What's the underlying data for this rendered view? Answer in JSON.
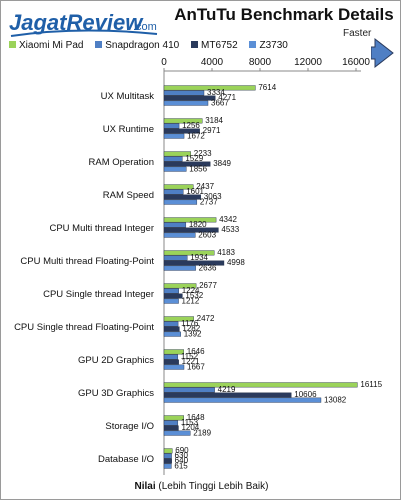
{
  "header": {
    "logo_text_1": "Jagat",
    "logo_text_2": "Review",
    "logo_domain": ".com",
    "title": "AnTuTu Benchmark Details",
    "faster_label": "Faster"
  },
  "colors": {
    "xiaomi": "#9bd35a",
    "snapdragon": "#4f7fc4",
    "mt6752": "#2a3a5c",
    "z3730": "#5b8fd6",
    "logo_blue": "#1f5fa8"
  },
  "chart_data": {
    "type": "bar",
    "orientation": "horizontal",
    "title": "AnTuTu Benchmark Details",
    "categories": [
      "UX Multitask",
      "UX Runtime",
      "RAM Operation",
      "RAM Speed",
      "CPU Multi thread Integer",
      "CPU Multi thread Floating-Point",
      "CPU Single thread Integer",
      "CPU Single thread Floating-Point",
      "GPU 2D Graphics",
      "GPU 3D Graphics",
      "Storage I/O",
      "Database I/O"
    ],
    "series": [
      {
        "name": "Xiaomi Mi Pad",
        "values": [
          7614,
          3184,
          2233,
          2437,
          4342,
          4183,
          2677,
          2472,
          1646,
          16115,
          1648,
          690
        ]
      },
      {
        "name": "Snapdragon 410",
        "values": [
          3334,
          1256,
          1529,
          1601,
          1820,
          1934,
          1224,
          1176,
          1152,
          4219,
          1153,
          630
        ]
      },
      {
        "name": "MT6752",
        "values": [
          4271,
          2971,
          3849,
          3063,
          4533,
          4998,
          1532,
          1282,
          1221,
          10606,
          1204,
          640
        ]
      },
      {
        "name": "Z3730",
        "values": [
          3667,
          1672,
          1856,
          2737,
          2603,
          2636,
          1212,
          1392,
          1667,
          13082,
          2189,
          615
        ]
      }
    ],
    "xlim": [
      0,
      16000
    ],
    "xticks": [
      0,
      4000,
      8000,
      12000,
      16000
    ],
    "xticks_labels": [
      "0",
      "4000",
      "8000",
      "12000",
      "16000"
    ],
    "xlabel_bold": "Nilai",
    "xlabel_rest": " (Lebih Tinggi Lebih Baik)",
    "legend_position": "top",
    "axis_position": "top",
    "grid": false
  }
}
